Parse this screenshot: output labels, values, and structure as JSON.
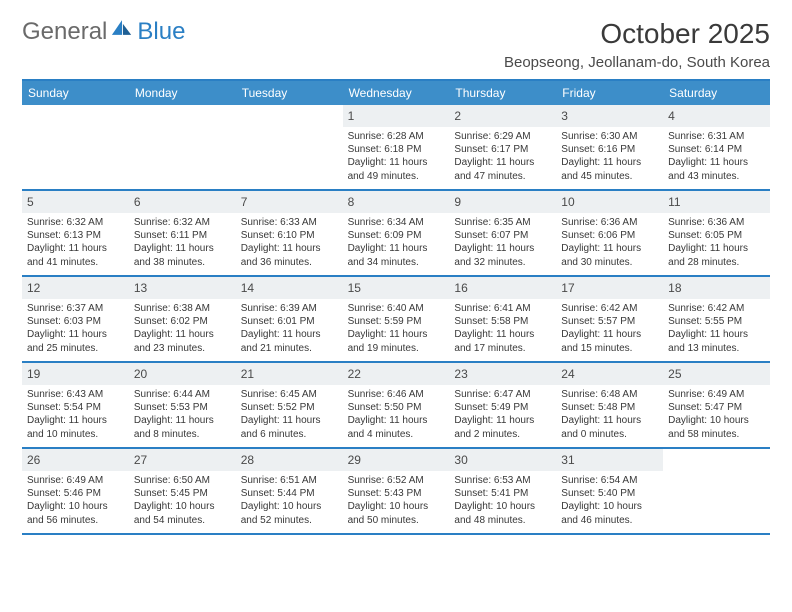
{
  "logo": {
    "text1": "General",
    "text2": "Blue",
    "accent": "#2a7fc4",
    "gray": "#6a6a6a"
  },
  "title": "October 2025",
  "location": "Beopseong, Jeollanam-do, South Korea",
  "header_bg": "#3d8ec9",
  "border_color": "#2a7fc4",
  "daynum_bg": "#edf0f2",
  "weekdays": [
    "Sunday",
    "Monday",
    "Tuesday",
    "Wednesday",
    "Thursday",
    "Friday",
    "Saturday"
  ],
  "weeks": [
    [
      {
        "n": "",
        "sr": "",
        "ss": "",
        "dl": ""
      },
      {
        "n": "",
        "sr": "",
        "ss": "",
        "dl": ""
      },
      {
        "n": "",
        "sr": "",
        "ss": "",
        "dl": ""
      },
      {
        "n": "1",
        "sr": "Sunrise: 6:28 AM",
        "ss": "Sunset: 6:18 PM",
        "dl": "Daylight: 11 hours and 49 minutes."
      },
      {
        "n": "2",
        "sr": "Sunrise: 6:29 AM",
        "ss": "Sunset: 6:17 PM",
        "dl": "Daylight: 11 hours and 47 minutes."
      },
      {
        "n": "3",
        "sr": "Sunrise: 6:30 AM",
        "ss": "Sunset: 6:16 PM",
        "dl": "Daylight: 11 hours and 45 minutes."
      },
      {
        "n": "4",
        "sr": "Sunrise: 6:31 AM",
        "ss": "Sunset: 6:14 PM",
        "dl": "Daylight: 11 hours and 43 minutes."
      }
    ],
    [
      {
        "n": "5",
        "sr": "Sunrise: 6:32 AM",
        "ss": "Sunset: 6:13 PM",
        "dl": "Daylight: 11 hours and 41 minutes."
      },
      {
        "n": "6",
        "sr": "Sunrise: 6:32 AM",
        "ss": "Sunset: 6:11 PM",
        "dl": "Daylight: 11 hours and 38 minutes."
      },
      {
        "n": "7",
        "sr": "Sunrise: 6:33 AM",
        "ss": "Sunset: 6:10 PM",
        "dl": "Daylight: 11 hours and 36 minutes."
      },
      {
        "n": "8",
        "sr": "Sunrise: 6:34 AM",
        "ss": "Sunset: 6:09 PM",
        "dl": "Daylight: 11 hours and 34 minutes."
      },
      {
        "n": "9",
        "sr": "Sunrise: 6:35 AM",
        "ss": "Sunset: 6:07 PM",
        "dl": "Daylight: 11 hours and 32 minutes."
      },
      {
        "n": "10",
        "sr": "Sunrise: 6:36 AM",
        "ss": "Sunset: 6:06 PM",
        "dl": "Daylight: 11 hours and 30 minutes."
      },
      {
        "n": "11",
        "sr": "Sunrise: 6:36 AM",
        "ss": "Sunset: 6:05 PM",
        "dl": "Daylight: 11 hours and 28 minutes."
      }
    ],
    [
      {
        "n": "12",
        "sr": "Sunrise: 6:37 AM",
        "ss": "Sunset: 6:03 PM",
        "dl": "Daylight: 11 hours and 25 minutes."
      },
      {
        "n": "13",
        "sr": "Sunrise: 6:38 AM",
        "ss": "Sunset: 6:02 PM",
        "dl": "Daylight: 11 hours and 23 minutes."
      },
      {
        "n": "14",
        "sr": "Sunrise: 6:39 AM",
        "ss": "Sunset: 6:01 PM",
        "dl": "Daylight: 11 hours and 21 minutes."
      },
      {
        "n": "15",
        "sr": "Sunrise: 6:40 AM",
        "ss": "Sunset: 5:59 PM",
        "dl": "Daylight: 11 hours and 19 minutes."
      },
      {
        "n": "16",
        "sr": "Sunrise: 6:41 AM",
        "ss": "Sunset: 5:58 PM",
        "dl": "Daylight: 11 hours and 17 minutes."
      },
      {
        "n": "17",
        "sr": "Sunrise: 6:42 AM",
        "ss": "Sunset: 5:57 PM",
        "dl": "Daylight: 11 hours and 15 minutes."
      },
      {
        "n": "18",
        "sr": "Sunrise: 6:42 AM",
        "ss": "Sunset: 5:55 PM",
        "dl": "Daylight: 11 hours and 13 minutes."
      }
    ],
    [
      {
        "n": "19",
        "sr": "Sunrise: 6:43 AM",
        "ss": "Sunset: 5:54 PM",
        "dl": "Daylight: 11 hours and 10 minutes."
      },
      {
        "n": "20",
        "sr": "Sunrise: 6:44 AM",
        "ss": "Sunset: 5:53 PM",
        "dl": "Daylight: 11 hours and 8 minutes."
      },
      {
        "n": "21",
        "sr": "Sunrise: 6:45 AM",
        "ss": "Sunset: 5:52 PM",
        "dl": "Daylight: 11 hours and 6 minutes."
      },
      {
        "n": "22",
        "sr": "Sunrise: 6:46 AM",
        "ss": "Sunset: 5:50 PM",
        "dl": "Daylight: 11 hours and 4 minutes."
      },
      {
        "n": "23",
        "sr": "Sunrise: 6:47 AM",
        "ss": "Sunset: 5:49 PM",
        "dl": "Daylight: 11 hours and 2 minutes."
      },
      {
        "n": "24",
        "sr": "Sunrise: 6:48 AM",
        "ss": "Sunset: 5:48 PM",
        "dl": "Daylight: 11 hours and 0 minutes."
      },
      {
        "n": "25",
        "sr": "Sunrise: 6:49 AM",
        "ss": "Sunset: 5:47 PM",
        "dl": "Daylight: 10 hours and 58 minutes."
      }
    ],
    [
      {
        "n": "26",
        "sr": "Sunrise: 6:49 AM",
        "ss": "Sunset: 5:46 PM",
        "dl": "Daylight: 10 hours and 56 minutes."
      },
      {
        "n": "27",
        "sr": "Sunrise: 6:50 AM",
        "ss": "Sunset: 5:45 PM",
        "dl": "Daylight: 10 hours and 54 minutes."
      },
      {
        "n": "28",
        "sr": "Sunrise: 6:51 AM",
        "ss": "Sunset: 5:44 PM",
        "dl": "Daylight: 10 hours and 52 minutes."
      },
      {
        "n": "29",
        "sr": "Sunrise: 6:52 AM",
        "ss": "Sunset: 5:43 PM",
        "dl": "Daylight: 10 hours and 50 minutes."
      },
      {
        "n": "30",
        "sr": "Sunrise: 6:53 AM",
        "ss": "Sunset: 5:41 PM",
        "dl": "Daylight: 10 hours and 48 minutes."
      },
      {
        "n": "31",
        "sr": "Sunrise: 6:54 AM",
        "ss": "Sunset: 5:40 PM",
        "dl": "Daylight: 10 hours and 46 minutes."
      },
      {
        "n": "",
        "sr": "",
        "ss": "",
        "dl": ""
      }
    ]
  ]
}
